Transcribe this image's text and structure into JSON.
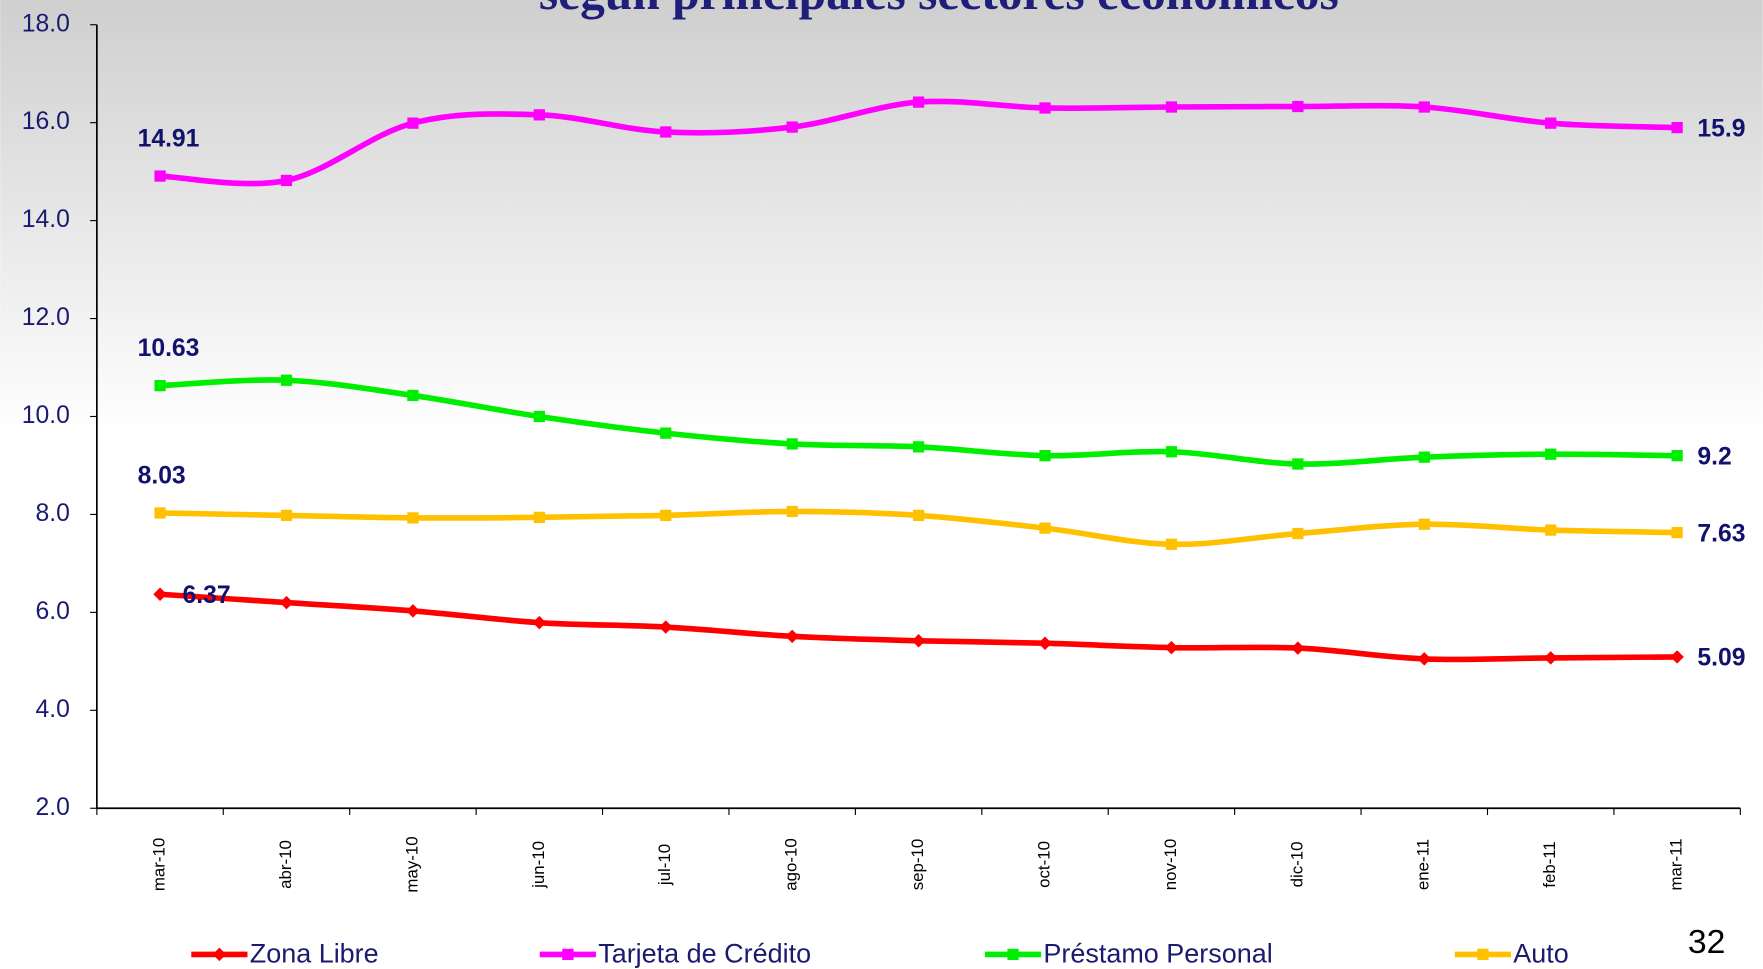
{
  "chart_data": {
    "type": "line",
    "title": "según principales sectores económicos",
    "categories": [
      "mar-10",
      "abr-10",
      "may-10",
      "jun-10",
      "jul-10",
      "ago-10",
      "sep-10",
      "oct-10",
      "nov-10",
      "dic-10",
      "ene-11",
      "feb-11",
      "mar-11"
    ],
    "series": [
      {
        "name": "Zona Libre",
        "color": "#ff0000",
        "marker": "diamond",
        "values": [
          6.37,
          6.2,
          6.03,
          5.79,
          5.7,
          5.51,
          5.42,
          5.37,
          5.28,
          5.27,
          5.05,
          5.07,
          5.09
        ]
      },
      {
        "name": "Tarjeta de Crédito",
        "color": "#ff00ff",
        "marker": "square",
        "values": [
          14.91,
          14.82,
          15.99,
          16.16,
          15.81,
          15.91,
          16.42,
          16.3,
          16.32,
          16.33,
          16.32,
          15.99,
          15.9
        ]
      },
      {
        "name": "Préstamo Personal",
        "color": "#00ee00",
        "marker": "square",
        "values": [
          10.63,
          10.74,
          10.43,
          10.0,
          9.66,
          9.44,
          9.38,
          9.2,
          9.28,
          9.03,
          9.17,
          9.23,
          9.2
        ]
      },
      {
        "name": "Auto",
        "color": "#ffc000",
        "marker": "square",
        "values": [
          8.03,
          7.98,
          7.93,
          7.94,
          7.98,
          8.06,
          7.98,
          7.72,
          7.39,
          7.61,
          7.8,
          7.68,
          7.63
        ]
      }
    ],
    "ylim": [
      2,
      18
    ],
    "yticks": [
      {
        "value": 2,
        "label": "2.0"
      },
      {
        "value": 4,
        "label": "4.0"
      },
      {
        "value": 6,
        "label": "6.0"
      },
      {
        "value": 8,
        "label": "8.0"
      },
      {
        "value": 10,
        "label": "10.0"
      },
      {
        "value": 12,
        "label": "12.0"
      },
      {
        "value": 14,
        "label": "14.0"
      },
      {
        "value": 16,
        "label": "16.0"
      },
      {
        "value": 18,
        "label": "18.0"
      }
    ],
    "legend": "bottom",
    "page_number": "32"
  }
}
